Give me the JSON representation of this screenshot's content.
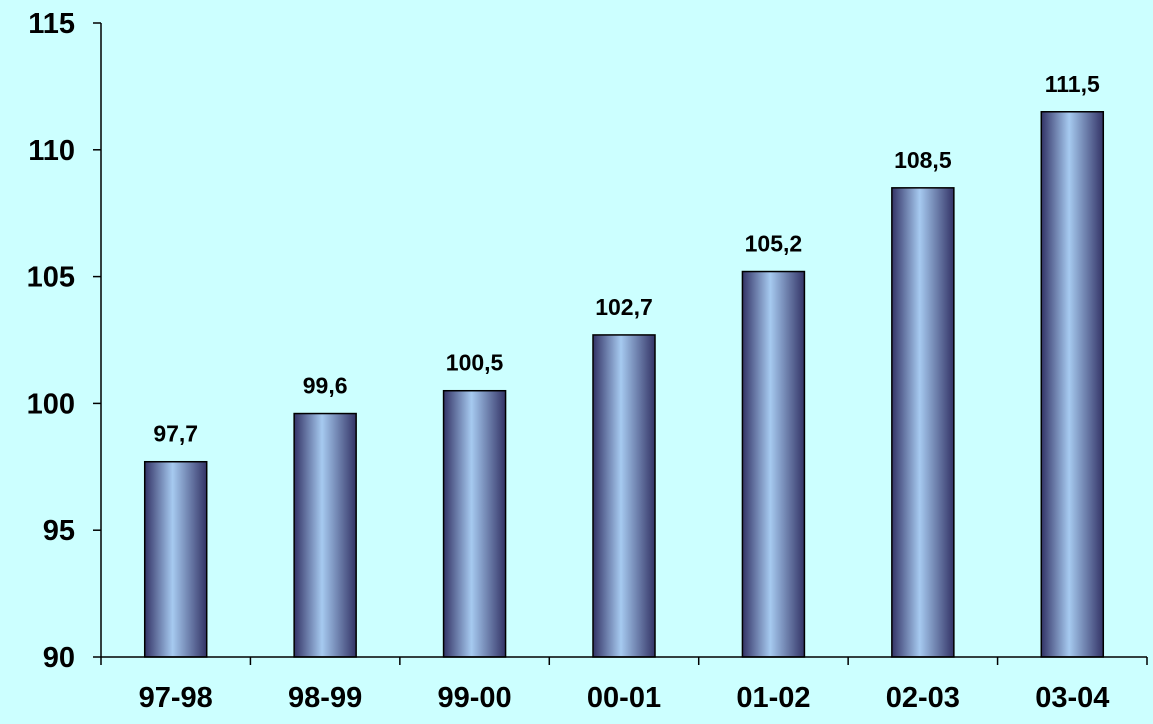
{
  "chart_data": {
    "type": "bar",
    "title": "",
    "xlabel": "",
    "ylabel": "",
    "categories": [
      "97-98",
      "98-99",
      "99-00",
      "00-01",
      "01-02",
      "02-03",
      "03-04"
    ],
    "values": [
      97.7,
      99.6,
      100.5,
      102.7,
      105.2,
      108.5,
      111.5
    ],
    "data_labels": [
      "97,7",
      "99,6",
      "100,5",
      "102,7",
      "105,2",
      "108,5",
      "111,5"
    ],
    "ylim": [
      90,
      115
    ],
    "yticks": [
      90,
      95,
      100,
      105,
      110,
      115
    ],
    "grid": false,
    "legend": "none",
    "colors": {
      "background": "#CCFFFF",
      "bar_light": "#A6CAF0",
      "bar_dark": "#333366",
      "axis": "#000000"
    }
  }
}
